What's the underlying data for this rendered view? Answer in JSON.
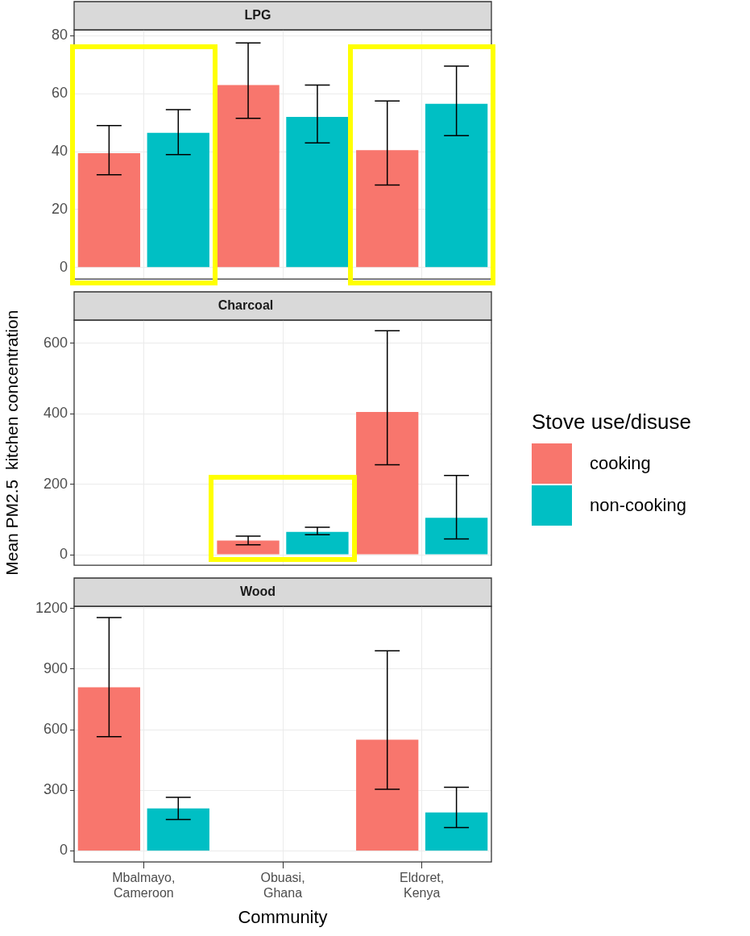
{
  "chart_data": [
    {
      "type": "bar",
      "title": "LPG",
      "categories": [
        null,
        null,
        null
      ],
      "series": [
        {
          "color": "#f8766d",
          "values": [
            39.5,
            63,
            40.5
          ],
          "errors": [
            [
              32,
              49
            ],
            [
              51.5,
              77.5
            ],
            [
              28.5,
              57.5
            ]
          ]
        },
        {
          "color": "#00bfc4",
          "values": [
            46.5,
            52,
            56.5
          ],
          "errors": [
            [
              39,
              54.5
            ],
            [
              43,
              63
            ],
            [
              45.5,
              69.5
            ]
          ]
        }
      ],
      "ylim": [
        -4,
        82
      ],
      "yticks": [
        0,
        20,
        40,
        60,
        80
      ],
      "grid": true,
      "tick_labels": "y"
    },
    {
      "type": "bar",
      "title": "Charcoal",
      "ylabel": "Mean PM2.5  kitchen concentration",
      "legend_title": "Stove use/disuse",
      "categories": [
        null,
        null,
        null
      ],
      "series": [
        {
          "name": "cooking",
          "color": "#f8766d",
          "values": [
            null,
            40,
            405
          ],
          "errors": [
            null,
            [
              28,
              53
            ],
            [
              255,
              635
            ]
          ]
        },
        {
          "name": "non-cooking",
          "color": "#00bfc4",
          "values": [
            null,
            65,
            105
          ],
          "errors": [
            null,
            [
              57,
              78
            ],
            [
              45,
              225
            ]
          ]
        }
      ],
      "ylim": [
        -30,
        665
      ],
      "yticks": [
        0,
        200,
        400,
        600
      ],
      "grid": true,
      "legend": "right",
      "tick_labels": "y"
    },
    {
      "type": "bar",
      "title": "Wood",
      "xlabel": "Community",
      "categories": [
        "Mbalmayo, Cameroon",
        "Obuasi, Ghana",
        "Eldoret, Kenya"
      ],
      "series": [
        {
          "color": "#f8766d",
          "values": [
            810,
            null,
            550
          ],
          "errors": [
            [
              565,
              1155
            ],
            null,
            [
              305,
              990
            ]
          ]
        },
        {
          "color": "#00bfc4",
          "values": [
            210,
            null,
            190
          ],
          "errors": [
            [
              155,
              265
            ],
            null,
            [
              115,
              315
            ]
          ]
        }
      ],
      "ylim": [
        -55,
        1210
      ],
      "yticks": [
        0,
        300,
        600,
        900,
        1200
      ],
      "grid": true
    }
  ]
}
